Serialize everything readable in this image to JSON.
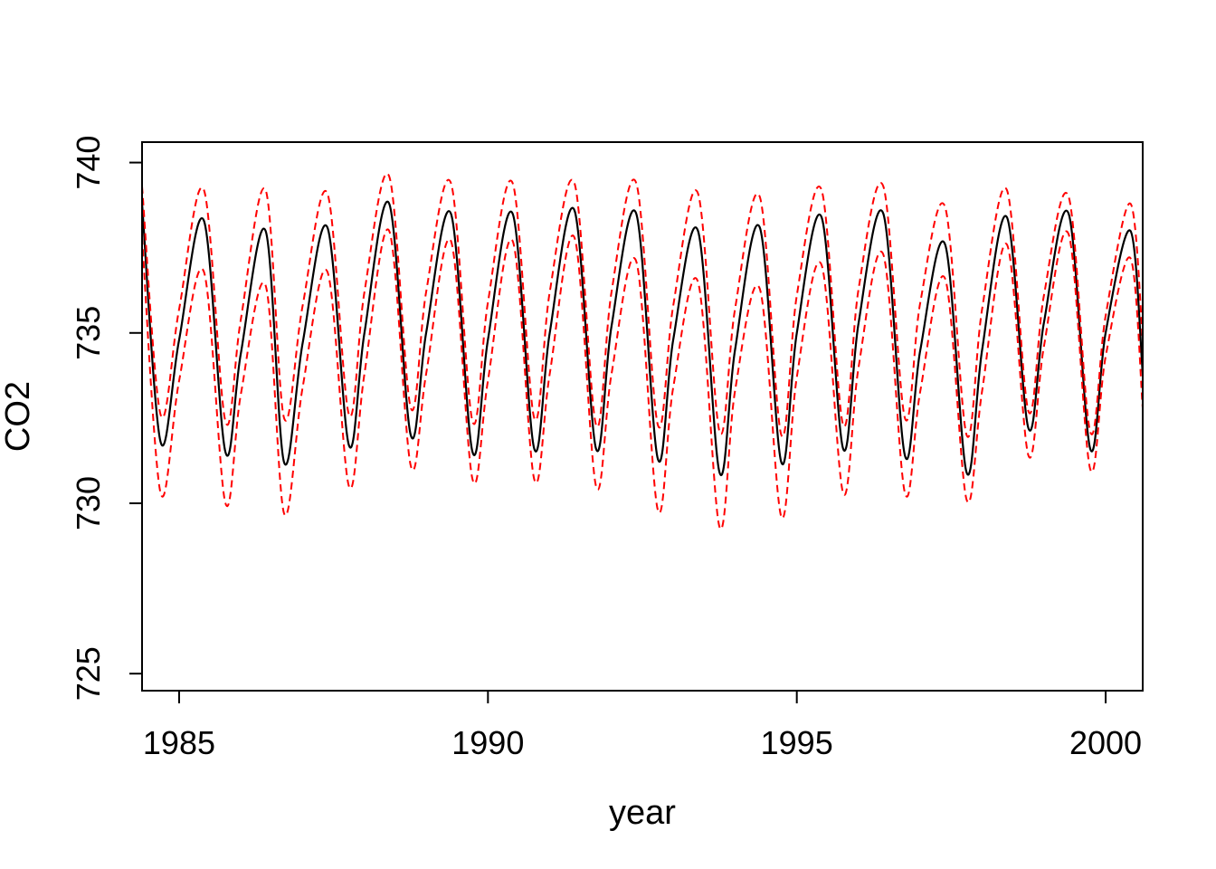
{
  "chart_data": {
    "type": "line",
    "xlabel": "year",
    "ylabel": "CO2",
    "xlim": [
      1984.4,
      2000.6
    ],
    "ylim": [
      724.5,
      740.6
    ],
    "xticks": [
      1985,
      1990,
      1995,
      2000
    ],
    "yticks": [
      725,
      730,
      735,
      740
    ],
    "xtick_labels": [
      "1985",
      "1990",
      "1995",
      "2000"
    ],
    "ytick_labels": [
      "725",
      "730",
      "735",
      "740"
    ],
    "grid": false,
    "legend": "none",
    "series": [
      {
        "role": "fit",
        "style": "solid",
        "color": "#000000",
        "x": [
          1984.4,
          1984.7,
          1985.0,
          1985.4,
          1985.75,
          1986.0,
          1986.4,
          1986.7,
          1987.0,
          1987.4,
          1987.75,
          1988.0,
          1988.4,
          1988.75,
          1989.0,
          1989.4,
          1989.75,
          1990.0,
          1990.4,
          1990.75,
          1991.0,
          1991.4,
          1991.75,
          1992.0,
          1992.4,
          1992.75,
          1993.0,
          1993.4,
          1993.75,
          1994.0,
          1994.4,
          1994.75,
          1995.0,
          1995.4,
          1995.75,
          1996.0,
          1996.4,
          1996.75,
          1997.0,
          1997.4,
          1997.75,
          1998.0,
          1998.4,
          1998.75,
          1999.0,
          1999.4,
          1999.75,
          2000.0,
          2000.4,
          2000.6
        ],
        "y": [
          738.8,
          731.8,
          734.8,
          738.3,
          731.5,
          734.4,
          738.0,
          731.2,
          734.7,
          738.1,
          731.7,
          735.0,
          738.8,
          732.0,
          735.0,
          738.5,
          731.5,
          734.8,
          738.5,
          731.6,
          735.0,
          738.6,
          731.6,
          735.2,
          738.5,
          731.3,
          734.8,
          738.0,
          730.9,
          734.5,
          738.1,
          731.2,
          735.0,
          738.4,
          731.6,
          735.3,
          738.5,
          731.4,
          734.5,
          737.6,
          730.9,
          734.5,
          738.4,
          732.2,
          735.3,
          738.5,
          731.6,
          735.0,
          738.0,
          733.8
        ]
      },
      {
        "role": "upper band",
        "style": "dashed",
        "color": "#ff0000",
        "x": [
          1984.4,
          1984.7,
          1985.0,
          1985.4,
          1985.75,
          1986.0,
          1986.4,
          1986.7,
          1987.0,
          1987.4,
          1987.75,
          1988.0,
          1988.4,
          1988.75,
          1989.0,
          1989.4,
          1989.75,
          1990.0,
          1990.4,
          1990.75,
          1991.0,
          1991.4,
          1991.75,
          1992.0,
          1992.4,
          1992.75,
          1993.0,
          1993.4,
          1993.75,
          1994.0,
          1994.4,
          1994.75,
          1995.0,
          1995.4,
          1995.75,
          1996.0,
          1996.4,
          1996.75,
          1997.0,
          1997.4,
          1997.75,
          1998.0,
          1998.4,
          1998.75,
          1999.0,
          1999.4,
          1999.75,
          2000.0,
          2000.4,
          2000.6
        ],
        "y": [
          739.3,
          732.6,
          735.7,
          739.2,
          732.4,
          735.4,
          739.2,
          732.5,
          735.8,
          739.1,
          732.6,
          736.2,
          739.6,
          732.8,
          736.2,
          739.4,
          732.4,
          735.9,
          739.4,
          732.5,
          736.2,
          739.4,
          732.3,
          736.2,
          739.4,
          732.3,
          735.8,
          739.1,
          732.1,
          735.7,
          739.0,
          732.0,
          736.1,
          739.2,
          732.3,
          736.3,
          739.3,
          732.5,
          735.9,
          738.7,
          732.0,
          735.7,
          739.2,
          732.7,
          736.1,
          739.0,
          732.1,
          735.5,
          738.8,
          734.8
        ]
      },
      {
        "role": "lower band",
        "style": "dashed",
        "color": "#ff0000",
        "x": [
          1984.4,
          1984.7,
          1985.0,
          1985.4,
          1985.75,
          1986.0,
          1986.4,
          1986.7,
          1987.0,
          1987.4,
          1987.75,
          1988.0,
          1988.4,
          1988.75,
          1989.0,
          1989.4,
          1989.75,
          1990.0,
          1990.4,
          1990.75,
          1991.0,
          1991.4,
          1991.75,
          1992.0,
          1992.4,
          1992.75,
          1993.0,
          1993.4,
          1993.75,
          1994.0,
          1994.4,
          1994.75,
          1995.0,
          1995.4,
          1995.75,
          1996.0,
          1996.4,
          1996.75,
          1997.0,
          1997.4,
          1997.75,
          1998.0,
          1998.4,
          1998.75,
          1999.0,
          1999.4,
          1999.75,
          2000.0,
          2000.4,
          2000.6
        ],
        "y": [
          737.8,
          730.3,
          733.6,
          736.8,
          730.0,
          733.2,
          736.4,
          729.7,
          733.4,
          736.8,
          730.5,
          733.8,
          738.0,
          731.1,
          733.8,
          737.7,
          730.7,
          733.6,
          737.7,
          730.7,
          733.8,
          737.8,
          730.5,
          733.8,
          737.1,
          729.8,
          733.4,
          736.5,
          729.3,
          733.3,
          736.3,
          729.6,
          733.7,
          737.0,
          730.3,
          734.0,
          737.3,
          730.3,
          733.3,
          736.6,
          730.1,
          733.3,
          737.6,
          731.4,
          734.6,
          737.9,
          731.0,
          734.3,
          737.2,
          732.8
        ]
      }
    ]
  }
}
